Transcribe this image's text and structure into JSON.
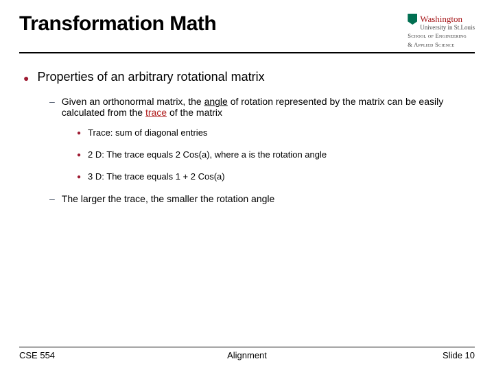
{
  "title": "Transformation Math",
  "logo": {
    "name": "Washington",
    "sub": "University in St.Louis",
    "school_l1": "School of Engineering",
    "school_l2": "& Applied Science"
  },
  "bullets": {
    "l1": "Properties of an arbitrary rotational matrix",
    "l2a_pre": "Given an orthonormal matrix, the ",
    "l2a_u1": "angle",
    "l2a_mid": " of rotation represented by the matrix can be easily calculated from the ",
    "l2a_u2": "trace",
    "l2a_post": " of the matrix",
    "l3a": "Trace: sum of diagonal entries",
    "l3b": "2 D: The trace equals 2 Cos(a), where a is the rotation angle",
    "l3c": "3 D: The trace equals 1 + 2 Cos(a)",
    "l2b": "The larger the trace, the smaller the rotation angle"
  },
  "footer": {
    "left": "CSE 554",
    "center": "Alignment",
    "right": "Slide 10"
  },
  "colors": {
    "accent": "#9e1b32",
    "text": "#000000",
    "trace_color": "#b22222"
  }
}
